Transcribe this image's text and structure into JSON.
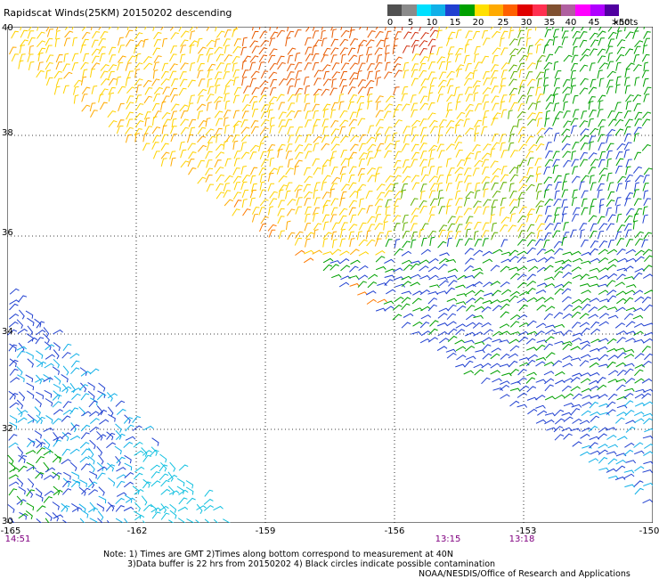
{
  "title": "Rapidscat Winds(25KM) 20150202 descending",
  "legend": {
    "unit": "knots",
    "labels": [
      "0",
      "5",
      "10",
      "15",
      "20",
      "25",
      "30",
      "35",
      "40",
      "45",
      ">50"
    ],
    "colors": [
      "#505050",
      "#8a8a8a",
      "#00e0ff",
      "#10b0e8",
      "#2040d0",
      "#00a000",
      "#ffe000",
      "#ffaa00",
      "#ff6000",
      "#e00000",
      "#ff3050",
      "#805030",
      "#b060a0",
      "#ff00ff",
      "#b000ff",
      "#5000a0"
    ]
  },
  "map": {
    "lat_labels": [
      "40",
      "38",
      "36",
      "34",
      "32",
      "30"
    ],
    "lon_labels": [
      "-165",
      "-162",
      "-159",
      "-156",
      "-153",
      "-150"
    ],
    "time_labels": [
      "14:51",
      "13:15",
      "13:18"
    ]
  },
  "notes": {
    "line1": "Note: 1) Times are GMT 2)Times along bottom correspond to measurement at 40N",
    "line2": "3)Data buffer is 22 hrs from 20150202 4) Black circles indicate possible contamination",
    "credit": "NOAA/NESDIS/Office of Research and Applications"
  }
}
